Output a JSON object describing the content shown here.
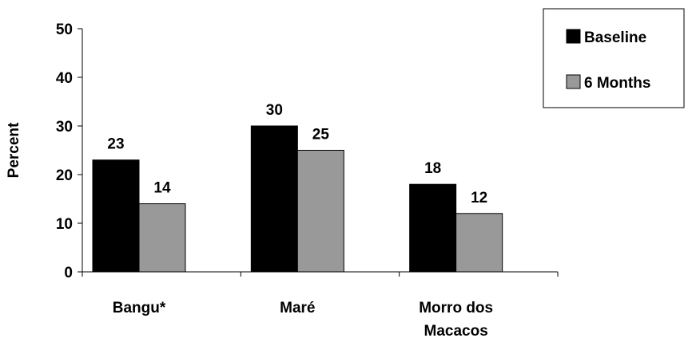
{
  "chart_data": {
    "type": "bar",
    "categories": [
      [
        "Bangu*"
      ],
      [
        "Maré"
      ],
      [
        "Morro dos",
        "Macacos"
      ]
    ],
    "series": [
      {
        "name": "Baseline",
        "values": [
          23,
          30,
          18
        ],
        "color": "#000000"
      },
      {
        "name": "6 Months",
        "values": [
          14,
          25,
          12
        ],
        "color": "#999999"
      }
    ],
    "ylabel": "Percent",
    "ylim": [
      0,
      50
    ],
    "yticks": [
      0,
      10,
      20,
      30,
      40,
      50
    ],
    "legend_position": "top-right",
    "grid": false
  }
}
